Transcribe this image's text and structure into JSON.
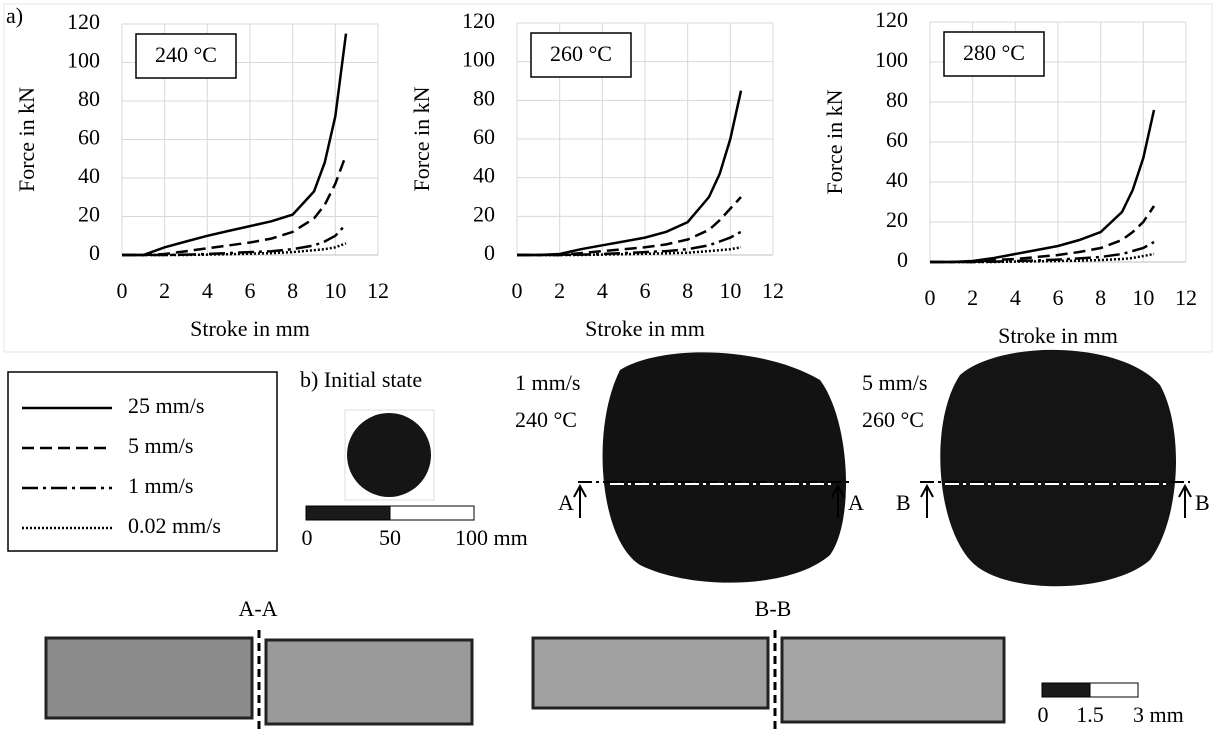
{
  "chart_data": [
    {
      "type": "line",
      "annotation": "240 °C",
      "xlabel": "Stroke in mm",
      "ylabel": "Force in kN",
      "xlim": [
        0,
        12
      ],
      "xticks": [
        0,
        2,
        4,
        6,
        8,
        10,
        12
      ],
      "ylim": [
        0,
        120
      ],
      "yticks": [
        0,
        20,
        40,
        60,
        80,
        100,
        120
      ],
      "grid": true,
      "x": [
        0,
        1,
        2,
        3,
        4,
        5,
        6,
        7,
        8,
        9,
        9.5,
        10,
        10.5
      ],
      "series": [
        {
          "name": "25 mm/s",
          "color": "#000000",
          "dash": "solid",
          "values": [
            0,
            0,
            4,
            7,
            10,
            12.5,
            15,
            17.5,
            21,
            33,
            48,
            72,
            115
          ]
        },
        {
          "name": "5 mm/s",
          "color": "#000000",
          "dash": "dashed",
          "values": [
            0,
            0,
            0.5,
            2,
            3.5,
            5,
            6.5,
            8.5,
            12,
            19,
            26,
            37,
            52
          ]
        },
        {
          "name": "1 mm/s",
          "color": "#000000",
          "dash": "dashdot",
          "values": [
            0,
            0,
            0,
            0.2,
            0.5,
            1,
            1.5,
            2,
            3,
            5,
            7,
            10,
            16
          ]
        },
        {
          "name": "0.02 mm/s",
          "color": "#000000",
          "dash": "dotted",
          "values": [
            0,
            0,
            0,
            0,
            0.2,
            0.4,
            0.7,
            1,
            1.5,
            2.5,
            3,
            4,
            6
          ]
        }
      ]
    },
    {
      "type": "line",
      "annotation": "260 °C",
      "xlabel": "Stroke in mm",
      "ylabel": "Force in kN",
      "xlim": [
        0,
        12
      ],
      "xticks": [
        0,
        2,
        4,
        6,
        8,
        10,
        12
      ],
      "ylim": [
        0,
        120
      ],
      "yticks": [
        0,
        20,
        40,
        60,
        80,
        100,
        120
      ],
      "grid": true,
      "x": [
        0,
        1,
        2,
        3,
        4,
        5,
        6,
        7,
        8,
        9,
        9.5,
        10,
        10.5
      ],
      "series": [
        {
          "color": "#000000",
          "dash": "solid",
          "values": [
            0,
            0,
            0.5,
            3,
            5,
            7,
            9,
            12,
            17,
            30,
            42,
            60,
            85
          ]
        },
        {
          "color": "#000000",
          "dash": "dashed",
          "values": [
            0,
            0,
            0,
            1,
            2,
            3,
            4,
            5.5,
            8,
            13,
            18,
            24,
            30
          ]
        },
        {
          "color": "#000000",
          "dash": "dashdot",
          "values": [
            0,
            0,
            0,
            0.2,
            0.5,
            1,
            1.5,
            2,
            3,
            5,
            7,
            9,
            12
          ]
        },
        {
          "color": "#000000",
          "dash": "dotted",
          "values": [
            0,
            0,
            0,
            0,
            0.2,
            0.4,
            0.6,
            0.9,
            1.2,
            2,
            2.5,
            3,
            4
          ]
        }
      ]
    },
    {
      "type": "line",
      "annotation": "280 °C",
      "xlabel": "Stroke in mm",
      "ylabel": "Force in kN",
      "xlim": [
        0,
        12
      ],
      "xticks": [
        0,
        2,
        4,
        6,
        8,
        10,
        12
      ],
      "ylim": [
        0,
        120
      ],
      "yticks": [
        0,
        20,
        40,
        60,
        80,
        100,
        120
      ],
      "grid": true,
      "x": [
        0,
        1,
        2,
        3,
        4,
        5,
        6,
        7,
        8,
        9,
        9.5,
        10,
        10.5
      ],
      "series": [
        {
          "color": "#000000",
          "dash": "solid",
          "values": [
            0,
            0,
            0.5,
            2,
            4,
            6,
            8,
            11,
            15,
            25,
            36,
            52,
            76
          ]
        },
        {
          "color": "#000000",
          "dash": "dashed",
          "values": [
            0,
            0,
            0,
            1,
            1.5,
            2.5,
            3.5,
            5,
            7,
            11,
            15,
            20,
            28
          ]
        },
        {
          "color": "#000000",
          "dash": "dashdot",
          "values": [
            0,
            0,
            0,
            0.2,
            0.5,
            0.8,
            1.2,
            1.8,
            2.5,
            4,
            5.5,
            7,
            10
          ]
        },
        {
          "color": "#000000",
          "dash": "dotted",
          "values": [
            0,
            0,
            0,
            0,
            0.2,
            0.3,
            0.5,
            0.7,
            1,
            1.5,
            2,
            3,
            4
          ]
        }
      ]
    }
  ],
  "panel_a": {
    "label": "a)"
  },
  "panel_b": {
    "label": "b) Initial state",
    "scale_large": [
      "0",
      "50",
      "100 mm"
    ],
    "sample1": {
      "speed": "1 mm/s",
      "temperature": "240 °C",
      "cut_left": "A",
      "cut_right": "A",
      "section": "A-A"
    },
    "sample2": {
      "speed": "5 mm/s",
      "temperature": "260 °C",
      "cut_left": "B",
      "cut_right": "B",
      "section": "B-B"
    },
    "scale_small": [
      "0",
      "1.5",
      "3 mm"
    ]
  }
}
